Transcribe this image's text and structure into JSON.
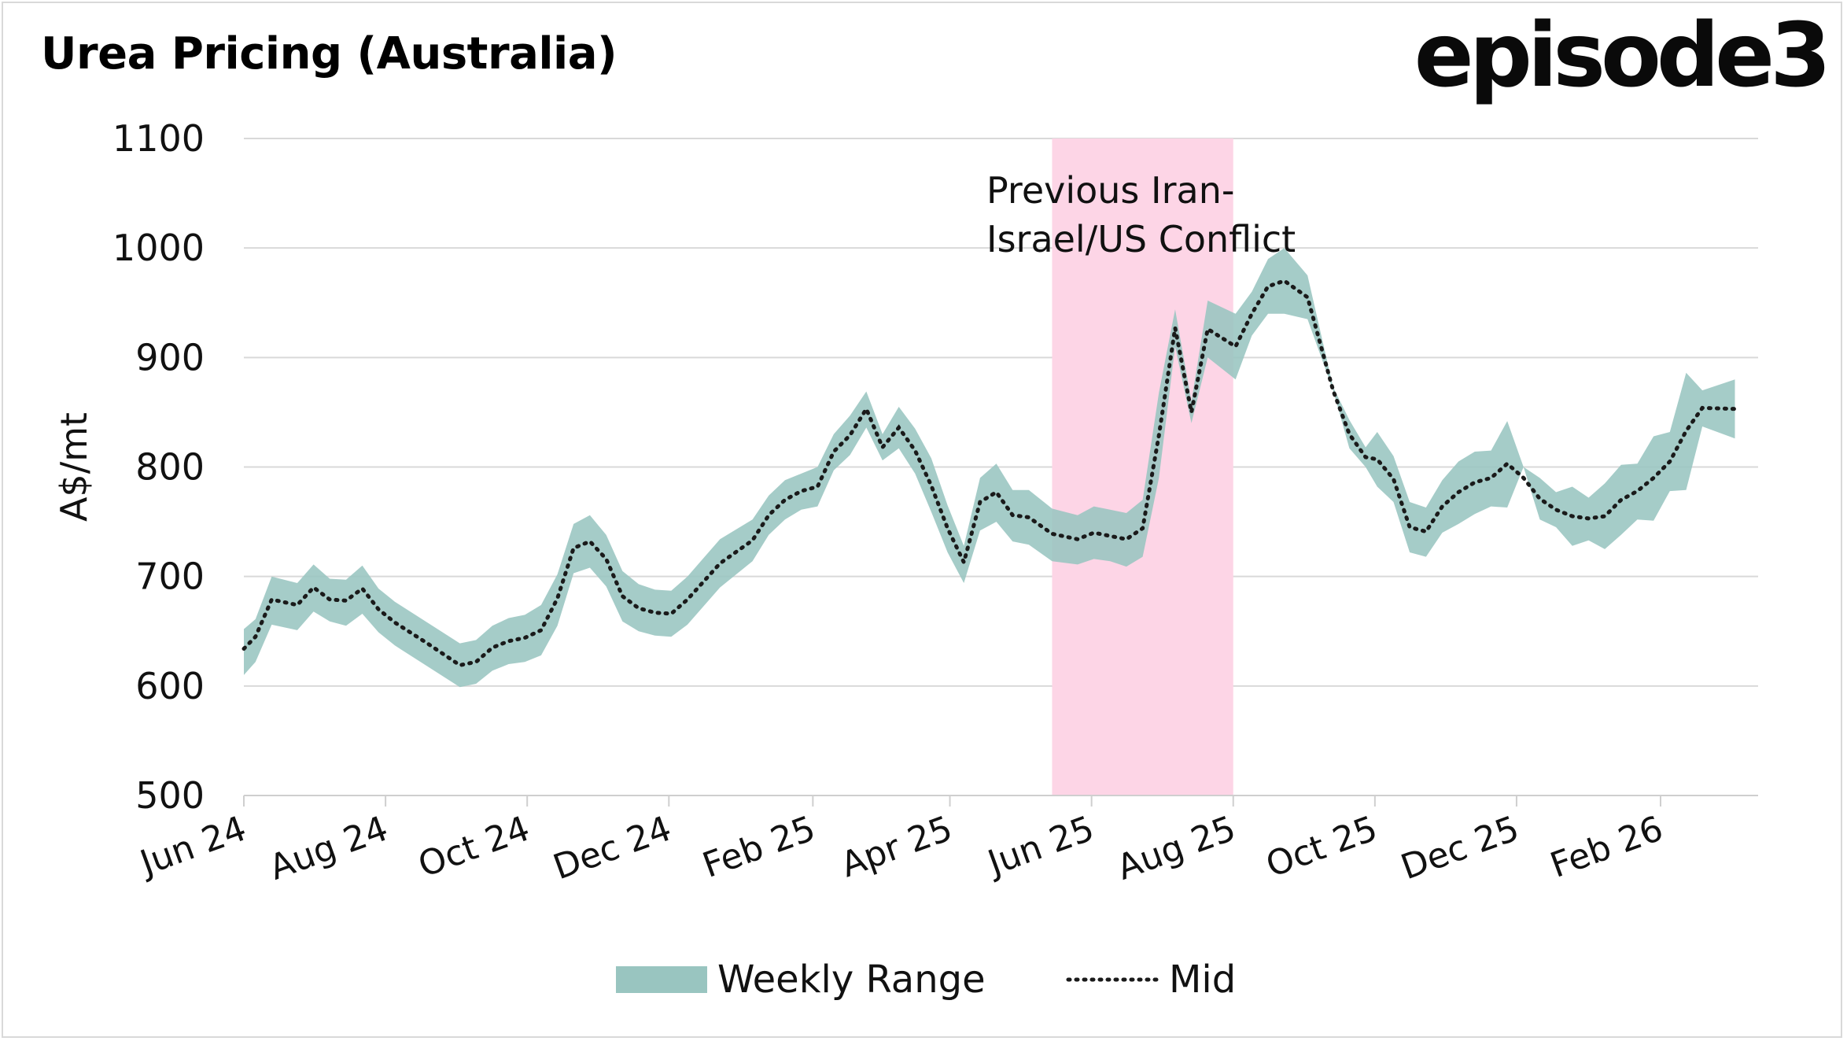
{
  "header": {
    "title": "Urea Pricing (Australia)",
    "logo_text": "episode3"
  },
  "chart_data": {
    "type": "area",
    "title": "Urea Pricing (Australia)",
    "ylabel": "A$/mt",
    "xlabel": "",
    "ylim": [
      500,
      1100
    ],
    "yticks": [
      500,
      600,
      700,
      800,
      900,
      1000,
      1100
    ],
    "xlim": [
      "2024-06-01",
      "2026-03-15"
    ],
    "xticks": [
      {
        "label": "Jun 24",
        "date": "2024-06-01"
      },
      {
        "label": "Aug 24",
        "date": "2024-08-01"
      },
      {
        "label": "Oct 24",
        "date": "2024-10-01"
      },
      {
        "label": "Dec 24",
        "date": "2024-12-01"
      },
      {
        "label": "Feb 25",
        "date": "2025-02-01"
      },
      {
        "label": "Apr 25",
        "date": "2025-04-01"
      },
      {
        "label": "Jun 25",
        "date": "2025-06-01"
      },
      {
        "label": "Aug 25",
        "date": "2025-08-01"
      },
      {
        "label": "Oct 25",
        "date": "2025-10-01"
      },
      {
        "label": "Dec 25",
        "date": "2025-12-01"
      },
      {
        "label": "Feb 26",
        "date": "2026-02-01"
      }
    ],
    "grid": true,
    "legend_position": "bottom",
    "colors": {
      "range": "#99c5c0",
      "mid": "#1a1a1a",
      "shade": "#fdd5e6",
      "grid": "#d9d9d9"
    },
    "annotation": {
      "text_lines": [
        "Previous Iran-",
        "Israel/US Conflict"
      ],
      "shaded_start": "2025-05-15",
      "shaded_end": "2025-08-01"
    },
    "series": [
      {
        "name": "Weekly Range",
        "kind": "band",
        "x": [
          "2024-06-01",
          "2024-06-06",
          "2024-06-13",
          "2024-06-24",
          "2024-07-01",
          "2024-07-08",
          "2024-07-15",
          "2024-07-22",
          "2024-07-29",
          "2024-08-05",
          "2024-08-19",
          "2024-09-02",
          "2024-09-09",
          "2024-09-16",
          "2024-09-23",
          "2024-09-30",
          "2024-10-07",
          "2024-10-14",
          "2024-10-21",
          "2024-10-28",
          "2024-11-04",
          "2024-11-11",
          "2024-11-18",
          "2024-11-25",
          "2024-12-02",
          "2024-12-09",
          "2024-12-23",
          "2025-01-06",
          "2025-01-13",
          "2025-01-20",
          "2025-01-27",
          "2025-02-03",
          "2025-02-10",
          "2025-02-17",
          "2025-02-24",
          "2025-03-03",
          "2025-03-10",
          "2025-03-17",
          "2025-03-24",
          "2025-03-31",
          "2025-04-07",
          "2025-04-14",
          "2025-04-21",
          "2025-04-28",
          "2025-05-05",
          "2025-05-15",
          "2025-05-26",
          "2025-06-02",
          "2025-06-09",
          "2025-06-16",
          "2025-06-23",
          "2025-06-30",
          "2025-07-07",
          "2025-07-14",
          "2025-07-21",
          "2025-08-02",
          "2025-08-09",
          "2025-08-16",
          "2025-08-23",
          "2025-09-02",
          "2025-09-13",
          "2025-09-20",
          "2025-09-27",
          "2025-10-02",
          "2025-10-09",
          "2025-10-16",
          "2025-10-23",
          "2025-10-30",
          "2025-11-06",
          "2025-11-13",
          "2025-11-20",
          "2025-11-27",
          "2025-12-04",
          "2025-12-11",
          "2025-12-18",
          "2025-12-25",
          "2026-01-01",
          "2026-01-08",
          "2026-01-15",
          "2026-01-22",
          "2026-01-29",
          "2026-02-05",
          "2026-02-12",
          "2026-02-19",
          "2026-03-05"
        ],
        "low": [
          610,
          622,
          656,
          651,
          668,
          659,
          655,
          666,
          649,
          637,
          618,
          599,
          602,
          614,
          620,
          622,
          628,
          655,
          703,
          708,
          691,
          659,
          650,
          646,
          645,
          656,
          690,
          714,
          738,
          752,
          761,
          764,
          797,
          811,
          836,
          806,
          817,
          794,
          759,
          722,
          694,
          742,
          750,
          732,
          729,
          714,
          711,
          716,
          714,
          709,
          718,
          790,
          910,
          840,
          900,
          880,
          920,
          940,
          940,
          935,
          870,
          817,
          800,
          782,
          768,
          722,
          718,
          740,
          748,
          757,
          764,
          763,
          800,
          752,
          745,
          728,
          733,
          725,
          738,
          752,
          751,
          778,
          779,
          837,
          826
        ],
        "high": [
          652,
          661,
          700,
          694,
          711,
          698,
          697,
          710,
          689,
          677,
          658,
          639,
          642,
          655,
          662,
          665,
          674,
          702,
          748,
          756,
          738,
          705,
          693,
          688,
          687,
          700,
          734,
          752,
          774,
          788,
          794,
          800,
          830,
          847,
          869,
          830,
          855,
          835,
          808,
          765,
          728,
          790,
          803,
          779,
          779,
          762,
          756,
          764,
          761,
          758,
          770,
          868,
          944,
          860,
          952,
          940,
          960,
          990,
          1000,
          975,
          873,
          843,
          818,
          832,
          810,
          768,
          763,
          788,
          805,
          814,
          815,
          842,
          800,
          790,
          777,
          782,
          772,
          785,
          802,
          803,
          828,
          832,
          886,
          870,
          880
        ]
      },
      {
        "name": "Mid",
        "kind": "dotted-line",
        "x": [
          "2024-06-01",
          "2024-06-06",
          "2024-06-13",
          "2024-06-24",
          "2024-07-01",
          "2024-07-08",
          "2024-07-15",
          "2024-07-22",
          "2024-07-29",
          "2024-08-05",
          "2024-08-19",
          "2024-09-02",
          "2024-09-09",
          "2024-09-16",
          "2024-09-23",
          "2024-09-30",
          "2024-10-07",
          "2024-10-14",
          "2024-10-21",
          "2024-10-28",
          "2024-11-04",
          "2024-11-11",
          "2024-11-18",
          "2024-11-25",
          "2024-12-02",
          "2024-12-09",
          "2024-12-23",
          "2025-01-06",
          "2025-01-13",
          "2025-01-20",
          "2025-01-27",
          "2025-02-03",
          "2025-02-10",
          "2025-02-17",
          "2025-02-24",
          "2025-03-03",
          "2025-03-10",
          "2025-03-17",
          "2025-03-24",
          "2025-03-31",
          "2025-04-07",
          "2025-04-14",
          "2025-04-21",
          "2025-04-28",
          "2025-05-05",
          "2025-05-15",
          "2025-05-26",
          "2025-06-02",
          "2025-06-09",
          "2025-06-16",
          "2025-06-23",
          "2025-06-30",
          "2025-07-07",
          "2025-07-14",
          "2025-07-21",
          "2025-08-02",
          "2025-08-09",
          "2025-08-16",
          "2025-08-23",
          "2025-09-02",
          "2025-09-13",
          "2025-09-20",
          "2025-09-27",
          "2025-10-02",
          "2025-10-09",
          "2025-10-16",
          "2025-10-23",
          "2025-10-30",
          "2025-11-06",
          "2025-11-13",
          "2025-11-20",
          "2025-11-27",
          "2025-12-04",
          "2025-12-11",
          "2025-12-18",
          "2025-12-25",
          "2026-01-01",
          "2026-01-08",
          "2026-01-15",
          "2026-01-22",
          "2026-01-29",
          "2026-02-05",
          "2026-02-12",
          "2026-02-19",
          "2026-03-05"
        ],
        "values": [
          634,
          645,
          679,
          674,
          690,
          679,
          678,
          689,
          670,
          658,
          639,
          619,
          622,
          635,
          641,
          644,
          651,
          680,
          726,
          732,
          716,
          682,
          671,
          667,
          666,
          679,
          712,
          733,
          756,
          770,
          778,
          782,
          814,
          829,
          853,
          818,
          836,
          815,
          783,
          744,
          713,
          768,
          777,
          756,
          754,
          739,
          734,
          740,
          737,
          734,
          744,
          829,
          927,
          850,
          926,
          910,
          940,
          965,
          970,
          955,
          870,
          830,
          809,
          807,
          789,
          745,
          741,
          764,
          777,
          786,
          790,
          803,
          790,
          771,
          761,
          755,
          753,
          755,
          770,
          778,
          790,
          805,
          833,
          854,
          853
        ]
      }
    ]
  },
  "legend": {
    "range_label": "Weekly Range",
    "mid_label": "Mid"
  }
}
